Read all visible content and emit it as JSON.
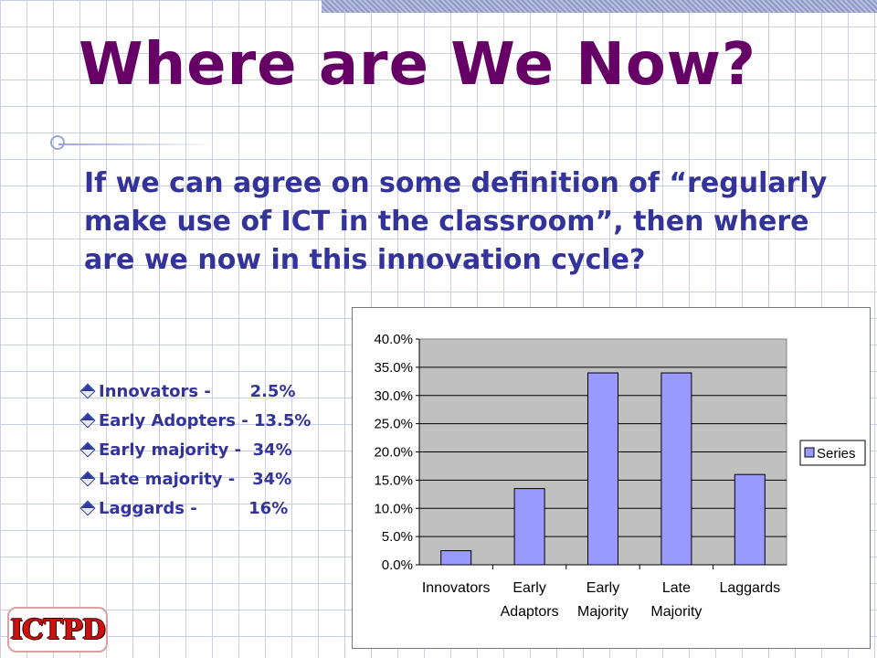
{
  "slide": {
    "title": "Where are We Now?",
    "intro": "If we can agree on some definition of “regularly make use of ICT in the classroom”, then where are we now in this innovation cycle?",
    "stats": [
      {
        "label": "Innovators -      ",
        "value": "2.5%"
      },
      {
        "label": "Early Adopters - ",
        "value": "13.5%"
      },
      {
        "label": "Early majority -  ",
        "value": "34%"
      },
      {
        "label": "Late majority -   ",
        "value": "34%"
      },
      {
        "label": "Laggards -         ",
        "value": "16%"
      }
    ],
    "logo_text": "ICTPD"
  },
  "colors": {
    "title": "#660066",
    "body_text": "#333399",
    "plot_area": "#c0c0c0",
    "bar_fill": "#9999ff",
    "bar_stroke": "#000000"
  },
  "chart_data": {
    "type": "bar",
    "categories": [
      [
        "Innovators"
      ],
      [
        "Early",
        "Adaptors"
      ],
      [
        "Early",
        "Majority"
      ],
      [
        "Late",
        "Majority"
      ],
      [
        "Laggards"
      ]
    ],
    "series": [
      {
        "name": "Series",
        "values": [
          2.5,
          13.5,
          34,
          34,
          16
        ]
      }
    ],
    "yticks": [
      "0.0%",
      "5.0%",
      "10.0%",
      "15.0%",
      "20.0%",
      "25.0%",
      "30.0%",
      "35.0%",
      "40.0%"
    ],
    "ylim": [
      0,
      40
    ],
    "title": "",
    "xlabel": "",
    "ylabel": "",
    "grid": true,
    "legend": "right"
  }
}
